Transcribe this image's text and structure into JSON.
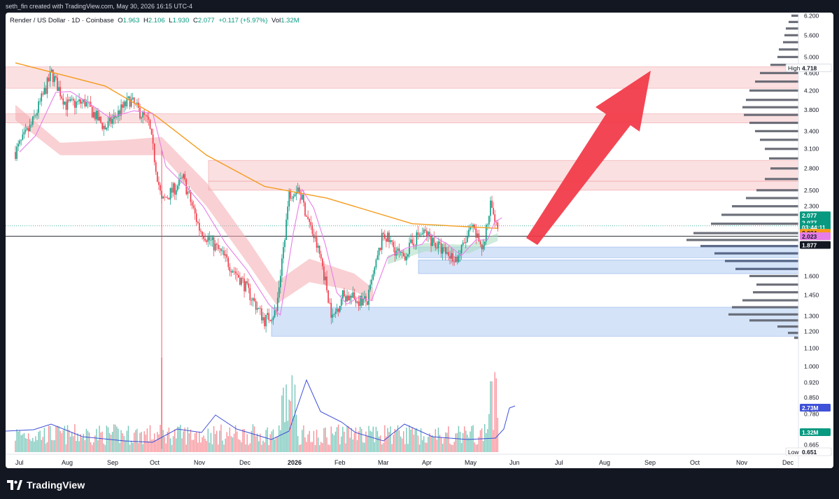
{
  "header": {
    "creator": "seth_fin created with TradingView.com, May 30, 2026 16:15 UTC-4"
  },
  "legend": {
    "title": "Render / US Dollar · 1D · Coinbase",
    "open_label": "O",
    "open": "1.963",
    "high_label": "H",
    "high": "2.106",
    "low_label": "L",
    "low": "1.930",
    "close_label": "C",
    "close": "2.077",
    "change": "+0.117 (+5.97%)",
    "vol_label": "Vol",
    "vol": "1.32M"
  },
  "footer": {
    "brand": "TradingView"
  },
  "colors": {
    "up": "#089981",
    "down": "#f23645",
    "ema200": "#f59b1d",
    "ma_fast": "#e77de8",
    "volume_ma": "#3f51d8",
    "resistance_zone": "#f7c6c8",
    "support_zone": "#b8d0f3",
    "arrow": "#f23645",
    "profile": "#5d606b"
  },
  "chart_data": {
    "type": "candlestick",
    "symbol": "Render / US Dollar",
    "timeframe": "1D",
    "exchange": "Coinbase",
    "x_labels": [
      "Jul",
      "Aug",
      "Sep",
      "Oct",
      "Nov",
      "Dec",
      "2026",
      "Feb",
      "Mar",
      "Apr",
      "May",
      "Jun",
      "Jul",
      "Aug",
      "Sep",
      "Oct",
      "Nov",
      "Dec"
    ],
    "y_labels": [
      "6.200",
      "5.600",
      "5.000",
      "4.600",
      "4.200",
      "3.800",
      "3.400",
      "3.100",
      "2.800",
      "2.500",
      "2.300",
      "1.600",
      "1.450",
      "1.300",
      "1.200",
      "1.100",
      "1.000",
      "0.920",
      "0.850",
      "0.780",
      "0.665"
    ],
    "y_scale": "log",
    "ylim": [
      0.64,
      6.3
    ],
    "ohlc": {
      "open": 1.963,
      "high": 2.106,
      "low": 1.93,
      "close": 2.077
    },
    "price_path": [
      {
        "date": "2025-07-01",
        "close": 3.05
      },
      {
        "date": "2025-07-12",
        "close": 3.5
      },
      {
        "date": "2025-07-26",
        "close": 4.6
      },
      {
        "date": "2025-08-05",
        "close": 3.9
      },
      {
        "date": "2025-08-18",
        "close": 3.95
      },
      {
        "date": "2025-09-01",
        "close": 3.45
      },
      {
        "date": "2025-09-18",
        "close": 4.0
      },
      {
        "date": "2025-10-01",
        "close": 3.55
      },
      {
        "date": "2025-10-10",
        "close": 2.35
      },
      {
        "date": "2025-10-25",
        "close": 2.65
      },
      {
        "date": "2025-11-05",
        "close": 2.05
      },
      {
        "date": "2025-11-20",
        "close": 1.8
      },
      {
        "date": "2025-12-05",
        "close": 1.55
      },
      {
        "date": "2025-12-20",
        "close": 1.27
      },
      {
        "date": "2025-12-28",
        "close": 1.33
      },
      {
        "date": "2026-01-06",
        "close": 2.45
      },
      {
        "date": "2026-01-12",
        "close": 2.55
      },
      {
        "date": "2026-01-20",
        "close": 2.1
      },
      {
        "date": "2026-01-28",
        "close": 1.75
      },
      {
        "date": "2026-02-05",
        "close": 1.28
      },
      {
        "date": "2026-02-12",
        "close": 1.45
      },
      {
        "date": "2026-02-20",
        "close": 1.42
      },
      {
        "date": "2026-03-01",
        "close": 1.4
      },
      {
        "date": "2026-03-12",
        "close": 2.0
      },
      {
        "date": "2026-03-25",
        "close": 1.75
      },
      {
        "date": "2026-04-05",
        "close": 1.98
      },
      {
        "date": "2026-04-10",
        "close": 2.0
      },
      {
        "date": "2026-04-22",
        "close": 1.82
      },
      {
        "date": "2026-05-02",
        "close": 1.75
      },
      {
        "date": "2026-05-12",
        "close": 2.05
      },
      {
        "date": "2026-05-20",
        "close": 1.85
      },
      {
        "date": "2026-05-25",
        "close": 2.3
      },
      {
        "date": "2026-05-30",
        "close": 2.077
      }
    ],
    "ema200_path": [
      {
        "date": "2025-07-01",
        "value": 4.85
      },
      {
        "date": "2025-09-01",
        "value": 4.3
      },
      {
        "date": "2025-10-05",
        "value": 3.7
      },
      {
        "date": "2025-11-10",
        "value": 3.0
      },
      {
        "date": "2025-12-20",
        "value": 2.55
      },
      {
        "date": "2026-02-01",
        "value": 2.4
      },
      {
        "date": "2026-04-01",
        "value": 2.1
      },
      {
        "date": "2026-05-30",
        "value": 2.05
      }
    ],
    "resistance_zones": [
      [
        4.25,
        4.75
      ],
      [
        3.55,
        3.72
      ],
      [
        2.5,
        2.62
      ],
      [
        2.62,
        2.92
      ]
    ],
    "support_zones": [
      [
        1.76,
        1.86
      ],
      [
        1.62,
        1.74
      ],
      [
        1.17,
        1.36
      ]
    ],
    "horizontal_line": 1.968,
    "volume_profile": "visible range",
    "price_labels": [
      {
        "text": "High",
        "value": "4.718",
        "color": "#ffffff",
        "text_color": "#131722"
      },
      {
        "text": "",
        "value": "2.077",
        "color": "#089981",
        "text_color": "#ffffff"
      },
      {
        "text": "",
        "value": "2.077",
        "color": "#089981",
        "text_color": "#ffffff"
      },
      {
        "text": "",
        "value": "03:44:11",
        "color": "#089981",
        "text_color": "#ffffff"
      },
      {
        "text": "",
        "value": "2.024",
        "color": "#f59b1d",
        "text_color": "#131722"
      },
      {
        "text": "",
        "value": "2.023",
        "color": "#e77de8",
        "text_color": "#131722"
      },
      {
        "text": "",
        "value": "1.877",
        "color": "#131722",
        "text_color": "#ffffff"
      },
      {
        "text": "",
        "value": "2.73M",
        "color": "#3f51d8",
        "text_color": "#ffffff"
      },
      {
        "text": "",
        "value": "1.32M",
        "color": "#089981",
        "text_color": "#ffffff"
      },
      {
        "text": "Low",
        "value": "0.651",
        "color": "#ffffff",
        "text_color": "#131722"
      }
    ]
  }
}
